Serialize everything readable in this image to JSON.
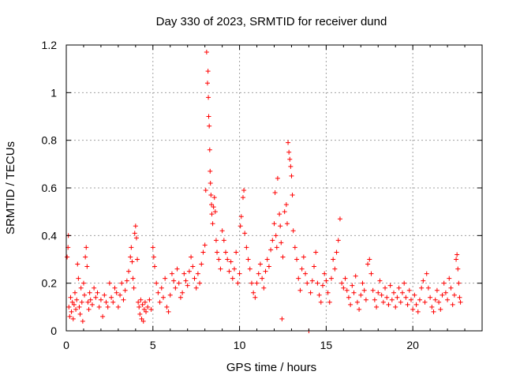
{
  "chart_data": {
    "type": "scatter",
    "title": "Day 330 of 2023, SRMTID for receiver dund",
    "xlabel": "GPS time / hours",
    "ylabel": "SRMTID / TECUs",
    "xlim": [
      0,
      24
    ],
    "ylim": [
      0,
      1.2
    ],
    "xticks": [
      0,
      5,
      10,
      15,
      20
    ],
    "xtick_labels": [
      "0",
      "5",
      "10",
      "15",
      "20"
    ],
    "yticks": [
      0,
      0.2,
      0.4,
      0.6,
      0.8,
      1.0,
      1.2
    ],
    "ytick_labels": [
      "0",
      "0.2",
      "0.4",
      "0.6",
      "0.8",
      "1",
      "1.2"
    ],
    "grid": true,
    "marker": "plus",
    "color": "#ff0000",
    "series": [
      {
        "name": "SRMTID",
        "points": [
          [
            0.05,
            0.31
          ],
          [
            0.1,
            0.35
          ],
          [
            0.12,
            0.4
          ],
          [
            0.15,
            0.1
          ],
          [
            0.2,
            0.06
          ],
          [
            0.25,
            0.14
          ],
          [
            0.3,
            0.08
          ],
          [
            0.35,
            0.12
          ],
          [
            0.4,
            0.05
          ],
          [
            0.45,
            0.11
          ],
          [
            0.5,
            0.16
          ],
          [
            0.55,
            0.09
          ],
          [
            0.6,
            0.13
          ],
          [
            0.65,
            0.28
          ],
          [
            0.7,
            0.22
          ],
          [
            0.75,
            0.1
          ],
          [
            0.8,
            0.07
          ],
          [
            0.85,
            0.18
          ],
          [
            0.9,
            0.12
          ],
          [
            0.95,
            0.04
          ],
          [
            1.0,
            0.2
          ],
          [
            1.05,
            0.15
          ],
          [
            1.1,
            0.31
          ],
          [
            1.15,
            0.35
          ],
          [
            1.2,
            0.27
          ],
          [
            1.25,
            0.12
          ],
          [
            1.3,
            0.09
          ],
          [
            1.35,
            0.16
          ],
          [
            1.4,
            0.13
          ],
          [
            1.5,
            0.11
          ],
          [
            1.6,
            0.18
          ],
          [
            1.7,
            0.14
          ],
          [
            1.8,
            0.16
          ],
          [
            1.9,
            0.1
          ],
          [
            2.0,
            0.13
          ],
          [
            2.1,
            0.06
          ],
          [
            2.2,
            0.15
          ],
          [
            2.3,
            0.12
          ],
          [
            2.4,
            0.1
          ],
          [
            2.5,
            0.2
          ],
          [
            2.6,
            0.14
          ],
          [
            2.7,
            0.12
          ],
          [
            2.8,
            0.18
          ],
          [
            2.9,
            0.16
          ],
          [
            3.0,
            0.1
          ],
          [
            3.1,
            0.15
          ],
          [
            3.2,
            0.2
          ],
          [
            3.3,
            0.13
          ],
          [
            3.4,
            0.17
          ],
          [
            3.5,
            0.21
          ],
          [
            3.6,
            0.25
          ],
          [
            3.7,
            0.31
          ],
          [
            3.75,
            0.35
          ],
          [
            3.8,
            0.29
          ],
          [
            3.85,
            0.22
          ],
          [
            3.9,
            0.18
          ],
          [
            3.95,
            0.41
          ],
          [
            4.0,
            0.44
          ],
          [
            4.05,
            0.39
          ],
          [
            4.1,
            0.3
          ],
          [
            4.15,
            0.12
          ],
          [
            4.2,
            0.1
          ],
          [
            4.25,
            0.07
          ],
          [
            4.3,
            0.13
          ],
          [
            4.35,
            0.05
          ],
          [
            4.4,
            0.11
          ],
          [
            4.45,
            0.04
          ],
          [
            4.5,
            0.09
          ],
          [
            4.55,
            0.12
          ],
          [
            4.6,
            0.08
          ],
          [
            4.7,
            0.1
          ],
          [
            4.8,
            0.13
          ],
          [
            4.9,
            0.09
          ],
          [
            5.0,
            0.35
          ],
          [
            5.05,
            0.31
          ],
          [
            5.1,
            0.27
          ],
          [
            5.2,
            0.2
          ],
          [
            5.3,
            0.16
          ],
          [
            5.4,
            0.12
          ],
          [
            5.5,
            0.18
          ],
          [
            5.6,
            0.14
          ],
          [
            5.7,
            0.22
          ],
          [
            5.8,
            0.1
          ],
          [
            5.9,
            0.08
          ],
          [
            6.0,
            0.15
          ],
          [
            6.1,
            0.24
          ],
          [
            6.2,
            0.21
          ],
          [
            6.3,
            0.18
          ],
          [
            6.4,
            0.26
          ],
          [
            6.5,
            0.2
          ],
          [
            6.6,
            0.14
          ],
          [
            6.7,
            0.16
          ],
          [
            6.8,
            0.24
          ],
          [
            6.9,
            0.21
          ],
          [
            7.0,
            0.19
          ],
          [
            7.1,
            0.25
          ],
          [
            7.2,
            0.31
          ],
          [
            7.3,
            0.27
          ],
          [
            7.4,
            0.22
          ],
          [
            7.5,
            0.18
          ],
          [
            7.6,
            0.24
          ],
          [
            7.7,
            0.2
          ],
          [
            7.8,
            0.28
          ],
          [
            7.9,
            0.33
          ],
          [
            8.0,
            0.36
          ],
          [
            8.05,
            0.59
          ],
          [
            8.1,
            1.17
          ],
          [
            8.15,
            1.04
          ],
          [
            8.18,
            1.09
          ],
          [
            8.2,
            0.98
          ],
          [
            8.22,
            0.9
          ],
          [
            8.25,
            0.86
          ],
          [
            8.28,
            0.76
          ],
          [
            8.3,
            0.67
          ],
          [
            8.32,
            0.62
          ],
          [
            8.35,
            0.57
          ],
          [
            8.38,
            0.53
          ],
          [
            8.4,
            0.49
          ],
          [
            8.45,
            0.45
          ],
          [
            8.5,
            0.52
          ],
          [
            8.55,
            0.56
          ],
          [
            8.6,
            0.5
          ],
          [
            8.65,
            0.38
          ],
          [
            8.7,
            0.33
          ],
          [
            8.8,
            0.3
          ],
          [
            8.9,
            0.26
          ],
          [
            9.0,
            0.42
          ],
          [
            9.1,
            0.38
          ],
          [
            9.2,
            0.33
          ],
          [
            9.3,
            0.3
          ],
          [
            9.4,
            0.25
          ],
          [
            9.5,
            0.29
          ],
          [
            9.6,
            0.22
          ],
          [
            9.7,
            0.26
          ],
          [
            9.8,
            0.33
          ],
          [
            9.9,
            0.2
          ],
          [
            10.0,
            0.24
          ],
          [
            10.05,
            0.44
          ],
          [
            10.1,
            0.48
          ],
          [
            10.2,
            0.56
          ],
          [
            10.25,
            0.59
          ],
          [
            10.3,
            0.41
          ],
          [
            10.4,
            0.35
          ],
          [
            10.5,
            0.3
          ],
          [
            10.6,
            0.26
          ],
          [
            10.7,
            0.2
          ],
          [
            10.8,
            0.16
          ],
          [
            10.9,
            0.14
          ],
          [
            11.0,
            0.2
          ],
          [
            11.1,
            0.24
          ],
          [
            11.2,
            0.28
          ],
          [
            11.3,
            0.22
          ],
          [
            11.4,
            0.18
          ],
          [
            11.5,
            0.25
          ],
          [
            11.6,
            0.3
          ],
          [
            11.7,
            0.27
          ],
          [
            11.8,
            0.34
          ],
          [
            11.9,
            0.38
          ],
          [
            12.0,
            0.45
          ],
          [
            12.05,
            0.58
          ],
          [
            12.1,
            0.4
          ],
          [
            12.15,
            0.35
          ],
          [
            12.2,
            0.64
          ],
          [
            12.3,
            0.49
          ],
          [
            12.35,
            0.44
          ],
          [
            12.4,
            0.37
          ],
          [
            12.45,
            0.05
          ],
          [
            12.5,
            0.31
          ],
          [
            12.6,
            0.5
          ],
          [
            12.7,
            0.53
          ],
          [
            12.75,
            0.45
          ],
          [
            12.8,
            0.79
          ],
          [
            12.85,
            0.75
          ],
          [
            12.9,
            0.72
          ],
          [
            12.95,
            0.69
          ],
          [
            13.0,
            0.65
          ],
          [
            13.05,
            0.57
          ],
          [
            13.1,
            0.42
          ],
          [
            13.2,
            0.35
          ],
          [
            13.3,
            0.3
          ],
          [
            13.4,
            0.22
          ],
          [
            13.5,
            0.17
          ],
          [
            13.6,
            0.26
          ],
          [
            13.7,
            0.31
          ],
          [
            13.8,
            0.24
          ],
          [
            13.9,
            0.2
          ],
          [
            14.0,
            0.0
          ],
          [
            14.1,
            0.16
          ],
          [
            14.2,
            0.21
          ],
          [
            14.3,
            0.27
          ],
          [
            14.4,
            0.33
          ],
          [
            14.5,
            0.2
          ],
          [
            14.6,
            0.15
          ],
          [
            14.7,
            0.12
          ],
          [
            14.8,
            0.19
          ],
          [
            14.9,
            0.24
          ],
          [
            15.0,
            0.21
          ],
          [
            15.1,
            0.16
          ],
          [
            15.2,
            0.12
          ],
          [
            15.3,
            0.22
          ],
          [
            15.4,
            0.3
          ],
          [
            15.5,
            0.26
          ],
          [
            15.6,
            0.33
          ],
          [
            15.7,
            0.38
          ],
          [
            15.8,
            0.47
          ],
          [
            15.9,
            0.2
          ],
          [
            16.0,
            0.18
          ],
          [
            16.1,
            0.22
          ],
          [
            16.2,
            0.17
          ],
          [
            16.3,
            0.14
          ],
          [
            16.4,
            0.11
          ],
          [
            16.5,
            0.19
          ],
          [
            16.6,
            0.16
          ],
          [
            16.7,
            0.23
          ],
          [
            16.8,
            0.12
          ],
          [
            16.9,
            0.09
          ],
          [
            17.0,
            0.15
          ],
          [
            17.1,
            0.2
          ],
          [
            17.2,
            0.17
          ],
          [
            17.3,
            0.13
          ],
          [
            17.4,
            0.28
          ],
          [
            17.5,
            0.3
          ],
          [
            17.6,
            0.24
          ],
          [
            17.7,
            0.17
          ],
          [
            17.8,
            0.13
          ],
          [
            17.9,
            0.1
          ],
          [
            18.0,
            0.16
          ],
          [
            18.1,
            0.21
          ],
          [
            18.2,
            0.15
          ],
          [
            18.3,
            0.12
          ],
          [
            18.4,
            0.18
          ],
          [
            18.5,
            0.14
          ],
          [
            18.6,
            0.11
          ],
          [
            18.7,
            0.19
          ],
          [
            18.8,
            0.13
          ],
          [
            18.9,
            0.16
          ],
          [
            19.0,
            0.1
          ],
          [
            19.1,
            0.14
          ],
          [
            19.2,
            0.18
          ],
          [
            19.3,
            0.12
          ],
          [
            19.4,
            0.16
          ],
          [
            19.5,
            0.2
          ],
          [
            19.6,
            0.14
          ],
          [
            19.7,
            0.11
          ],
          [
            19.8,
            0.17
          ],
          [
            19.9,
            0.13
          ],
          [
            20.0,
            0.09
          ],
          [
            20.1,
            0.15
          ],
          [
            20.2,
            0.11
          ],
          [
            20.3,
            0.08
          ],
          [
            20.4,
            0.13
          ],
          [
            20.5,
            0.18
          ],
          [
            20.6,
            0.21
          ],
          [
            20.7,
            0.12
          ],
          [
            20.8,
            0.24
          ],
          [
            20.9,
            0.18
          ],
          [
            21.0,
            0.14
          ],
          [
            21.1,
            0.1
          ],
          [
            21.2,
            0.08
          ],
          [
            21.3,
            0.13
          ],
          [
            21.4,
            0.17
          ],
          [
            21.5,
            0.12
          ],
          [
            21.6,
            0.09
          ],
          [
            21.7,
            0.15
          ],
          [
            21.8,
            0.2
          ],
          [
            21.9,
            0.16
          ],
          [
            22.0,
            0.13
          ],
          [
            22.1,
            0.22
          ],
          [
            22.2,
            0.18
          ],
          [
            22.3,
            0.11
          ],
          [
            22.4,
            0.15
          ],
          [
            22.5,
            0.3
          ],
          [
            22.55,
            0.32
          ],
          [
            22.6,
            0.26
          ],
          [
            22.65,
            0.2
          ],
          [
            22.7,
            0.14
          ],
          [
            22.75,
            0.12
          ]
        ]
      }
    ]
  }
}
